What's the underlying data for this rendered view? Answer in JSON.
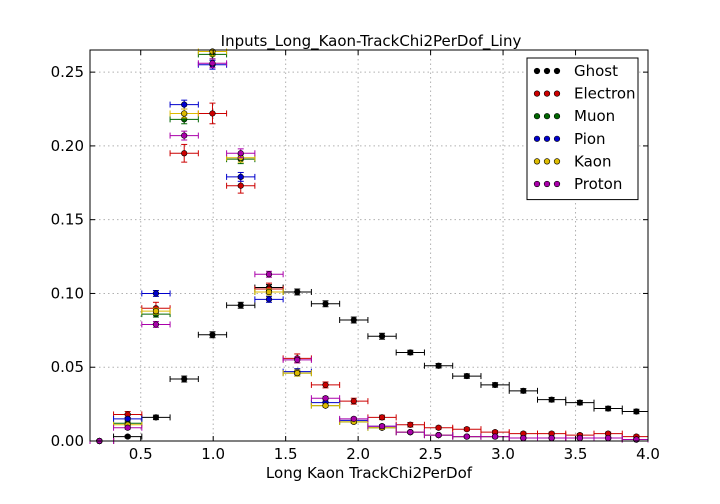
{
  "chart_data": {
    "type": "scatter",
    "title": "Inputs_Long_Kaon-TrackChi2PerDof_Liny",
    "xlabel": "Long Kaon TrackChi2PerDof",
    "ylabel": "",
    "xlim": [
      0.15,
      4.0
    ],
    "ylim": [
      0.0,
      0.265
    ],
    "x_ticks": [
      0.5,
      1.0,
      1.5,
      2.0,
      2.5,
      3.0,
      3.5,
      4.0
    ],
    "x_tick_labels": [
      "0.5",
      "1.0",
      "1.5",
      "2.0",
      "2.5",
      "3.0",
      "3.5",
      "4.0"
    ],
    "y_ticks": [
      0.0,
      0.05,
      0.1,
      0.15,
      0.2,
      0.25
    ],
    "y_tick_labels": [
      "0.00",
      "0.05",
      "0.10",
      "0.15",
      "0.20",
      "0.25"
    ],
    "grid": true,
    "legend_position": "top-right",
    "bin_half_width": 0.0975,
    "x": [
      0.215,
      0.41,
      0.605,
      0.8,
      0.995,
      1.19,
      1.385,
      1.58,
      1.775,
      1.97,
      2.165,
      2.36,
      2.555,
      2.75,
      2.945,
      3.14,
      3.335,
      3.53,
      3.725,
      3.92
    ],
    "series": [
      {
        "name": "Ghost",
        "color": "#000000",
        "values": [
          0.0,
          0.003,
          0.016,
          0.042,
          0.072,
          0.092,
          0.104,
          0.101,
          0.093,
          0.082,
          0.071,
          0.06,
          0.051,
          0.044,
          0.038,
          0.034,
          0.028,
          0.026,
          0.022,
          0.02
        ],
        "errors": [
          0.0005,
          0.0008,
          0.0015,
          0.002,
          0.002,
          0.002,
          0.002,
          0.002,
          0.002,
          0.002,
          0.002,
          0.0015,
          0.0015,
          0.0015,
          0.0015,
          0.0015,
          0.0015,
          0.0015,
          0.0015,
          0.0015
        ]
      },
      {
        "name": "Electron",
        "color": "#cc0000",
        "values": [
          0.0,
          0.018,
          0.09,
          0.195,
          0.222,
          0.173,
          0.103,
          0.056,
          0.038,
          0.027,
          0.016,
          0.011,
          0.009,
          0.008,
          0.006,
          0.005,
          0.005,
          0.004,
          0.005,
          0.003
        ],
        "errors": [
          0.0005,
          0.002,
          0.004,
          0.006,
          0.007,
          0.005,
          0.004,
          0.003,
          0.002,
          0.002,
          0.0015,
          0.0015,
          0.001,
          0.001,
          0.001,
          0.001,
          0.001,
          0.001,
          0.001,
          0.001
        ]
      },
      {
        "name": "Muon",
        "color": "#006600",
        "values": [
          0.0,
          0.012,
          0.086,
          0.218,
          0.262,
          0.191,
          0.101,
          0.046,
          0.024,
          0.013,
          0.009,
          0.006,
          0.004,
          0.003,
          0.003,
          0.002,
          0.002,
          0.002,
          0.002,
          0.001
        ],
        "errors": [
          0.0003,
          0.001,
          0.002,
          0.003,
          0.003,
          0.003,
          0.002,
          0.002,
          0.001,
          0.001,
          0.001,
          0.0008,
          0.0008,
          0.0006,
          0.0006,
          0.0006,
          0.0006,
          0.0006,
          0.0006,
          0.0005
        ]
      },
      {
        "name": "Pion",
        "color": "#0000cc",
        "values": [
          0.0,
          0.015,
          0.1,
          0.228,
          0.255,
          0.179,
          0.096,
          0.047,
          0.026,
          0.014,
          0.01,
          0.006,
          0.004,
          0.003,
          0.003,
          0.002,
          0.002,
          0.002,
          0.002,
          0.001
        ],
        "errors": [
          0.0003,
          0.001,
          0.002,
          0.003,
          0.003,
          0.003,
          0.002,
          0.002,
          0.001,
          0.001,
          0.001,
          0.0008,
          0.0008,
          0.0006,
          0.0006,
          0.0006,
          0.0006,
          0.0006,
          0.0006,
          0.0005
        ]
      },
      {
        "name": "Kaon",
        "color": "#ddbb00",
        "values": [
          0.0,
          0.011,
          0.088,
          0.222,
          0.264,
          0.192,
          0.101,
          0.046,
          0.024,
          0.013,
          0.009,
          0.006,
          0.004,
          0.003,
          0.003,
          0.002,
          0.002,
          0.002,
          0.002,
          0.001
        ],
        "errors": [
          0.0003,
          0.001,
          0.002,
          0.003,
          0.003,
          0.003,
          0.002,
          0.002,
          0.001,
          0.001,
          0.001,
          0.0008,
          0.0008,
          0.0006,
          0.0006,
          0.0006,
          0.0006,
          0.0006,
          0.0006,
          0.0005
        ]
      },
      {
        "name": "Proton",
        "color": "#aa00aa",
        "values": [
          0.0,
          0.009,
          0.079,
          0.207,
          0.256,
          0.195,
          0.113,
          0.055,
          0.029,
          0.015,
          0.01,
          0.006,
          0.004,
          0.003,
          0.003,
          0.002,
          0.002,
          0.002,
          0.002,
          0.001
        ],
        "errors": [
          0.0003,
          0.001,
          0.002,
          0.003,
          0.003,
          0.003,
          0.002,
          0.002,
          0.001,
          0.001,
          0.001,
          0.0008,
          0.0008,
          0.0006,
          0.0006,
          0.0006,
          0.0006,
          0.0006,
          0.0006,
          0.0005
        ]
      }
    ]
  }
}
